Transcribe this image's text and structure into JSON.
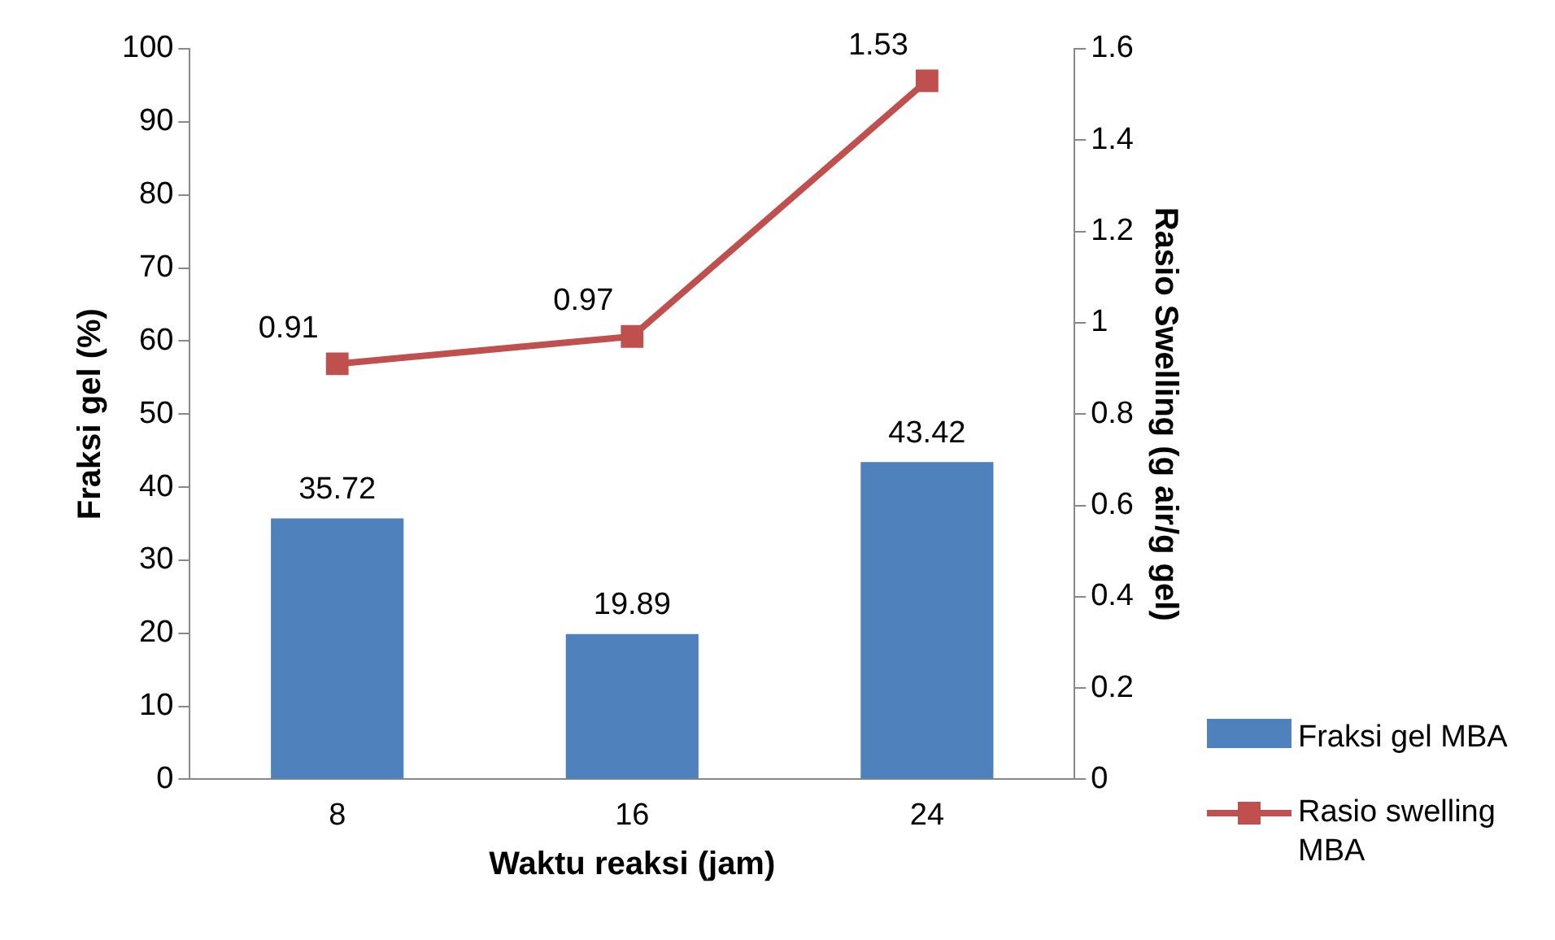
{
  "chart_data": {
    "type": "bar",
    "xlabel": "Waktu reaksi (jam)",
    "ylabel": "Fraksi gel (%)",
    "y2label": "Rasio Swelling (g air/g gel)",
    "categories": [
      "8",
      "16",
      "24"
    ],
    "series": [
      {
        "name": "Fraksi gel MBA",
        "color": "#4f81bd",
        "values": [
          35.72,
          19.89,
          43.42
        ]
      },
      {
        "name": "Rasio swelling MBA",
        "type": "line",
        "axis": "y2",
        "color": "#c0504d",
        "marker": "square",
        "values": [
          0.91,
          0.97,
          1.53
        ]
      }
    ],
    "ylim": [
      0,
      100
    ],
    "yticks": [
      0,
      10,
      20,
      30,
      40,
      50,
      60,
      70,
      80,
      90,
      100
    ],
    "y2lim": [
      0,
      1.6
    ],
    "y2ticks": [
      0,
      0.2,
      0.4,
      0.6,
      0.8,
      1,
      1.2,
      1.4,
      1.6
    ],
    "grid": false,
    "legend": "bottom right",
    "data_labels": true
  }
}
